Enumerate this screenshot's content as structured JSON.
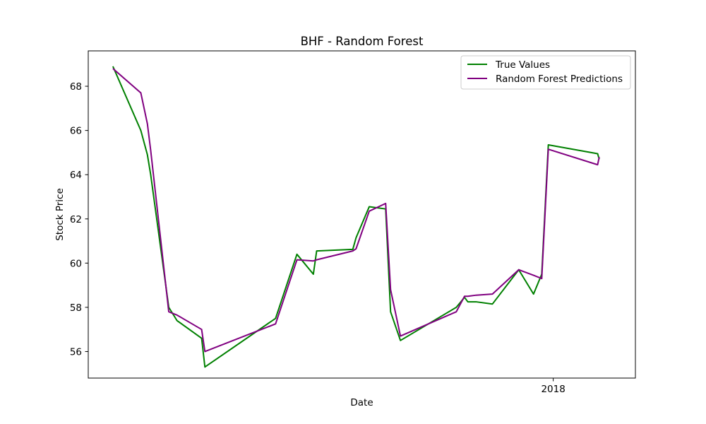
{
  "chart_data": {
    "type": "line",
    "title": "BHF - Random Forest",
    "xlabel": "Date",
    "ylabel": "Stock Price",
    "x_tick_labels": [
      "2018"
    ],
    "y_ticks": [
      56,
      58,
      60,
      62,
      64,
      66,
      68
    ],
    "ylim": [
      54.8,
      69.6
    ],
    "xlim": [
      -1.5,
      31.8
    ],
    "legend_position": "top-right",
    "grid": false,
    "x_index_note": "trading-day index; the tick labelled 2018 sits at index 26.8",
    "x": [
      0,
      1.7,
      2.1,
      2.3,
      3.4,
      3.9,
      5.4,
      5.6,
      9.9,
      11.2,
      12.2,
      12.4,
      14.6,
      14.8,
      15.6,
      16.6,
      16.9,
      17.5,
      20.9,
      21.4,
      21.6,
      22.1,
      23.1,
      24.7,
      25.6,
      26.1,
      26.5,
      29.5,
      29.6
    ],
    "series": [
      {
        "name": "True Values",
        "color": "#008000",
        "values": [
          68.9,
          66.0,
          64.9,
          64.0,
          58.0,
          57.4,
          56.6,
          55.3,
          57.5,
          60.4,
          59.5,
          60.55,
          60.62,
          61.15,
          62.55,
          62.45,
          57.8,
          56.5,
          58.0,
          58.45,
          58.25,
          58.25,
          58.15,
          59.7,
          58.6,
          59.5,
          65.35,
          64.95,
          64.7
        ]
      },
      {
        "name": "Random Forest Predictions",
        "color": "#800080",
        "values": [
          68.8,
          67.7,
          66.3,
          65.1,
          57.8,
          57.65,
          57.0,
          56.0,
          57.25,
          60.15,
          60.1,
          60.15,
          60.55,
          60.65,
          62.35,
          62.7,
          58.8,
          56.7,
          57.8,
          58.5,
          58.5,
          58.55,
          58.6,
          59.7,
          59.45,
          59.3,
          65.15,
          64.45,
          64.8
        ]
      }
    ]
  },
  "colors": {
    "true_values": "#008000",
    "predictions": "#800080",
    "axes": "#000000",
    "background": "#ffffff"
  }
}
